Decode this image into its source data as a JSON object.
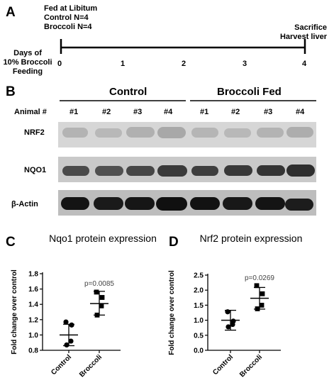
{
  "panel_a": {
    "letter": "A",
    "left_note": [
      "Fed at Libitum",
      "Control N=4",
      "Broccoli N=4"
    ],
    "right_note": [
      "Sacrifice",
      "Harvest liver"
    ],
    "axis_title": [
      "Days of",
      "10% Broccoli",
      "Feeding"
    ],
    "days": [
      "0",
      "1",
      "2",
      "3",
      "4"
    ]
  },
  "panel_b": {
    "letter": "B",
    "group_control": "Control",
    "group_broccoli": "Broccoli Fed",
    "animal_label": "Animal #",
    "animals": [
      "#1",
      "#2",
      "#3",
      "#4",
      "#1",
      "#2",
      "#3",
      "#4"
    ],
    "rows": [
      "NRF2",
      "NQO1",
      "β-Actin"
    ]
  },
  "chart_data": [
    {
      "panel": "C",
      "type": "scatter",
      "title": "Nqo1 protein expression",
      "ylabel": "Fold change over control",
      "categories": [
        "Control",
        "Broccoli"
      ],
      "ylim": [
        0.8,
        1.8
      ],
      "yticks": [
        "0.8",
        "1.0",
        "1.2",
        "1.4",
        "1.6",
        "1.8"
      ],
      "series": [
        {
          "marker": "circle",
          "values": [
            1.17,
            1.13,
            0.92,
            0.87
          ]
        },
        {
          "marker": "square",
          "values": [
            1.56,
            1.49,
            1.38,
            1.26
          ]
        }
      ],
      "mean": [
        1.0,
        1.41
      ],
      "sd_low": [
        0.86,
        1.26
      ],
      "sd_high": [
        1.14,
        1.57
      ],
      "annotation": "p=0.0085"
    },
    {
      "panel": "D",
      "type": "scatter",
      "title": "Nrf2 protein expression",
      "ylabel": "Fold change over control",
      "categories": [
        "Control",
        "Broccoli"
      ],
      "ylim": [
        0.0,
        2.5
      ],
      "yticks": [
        "0.0",
        "0.5",
        "1.0",
        "1.5",
        "2.0",
        "2.5"
      ],
      "series": [
        {
          "marker": "circle",
          "values": [
            1.28,
            0.97,
            0.86,
            0.78
          ]
        },
        {
          "marker": "square",
          "values": [
            2.15,
            1.88,
            1.5,
            1.38
          ]
        }
      ],
      "mean": [
        1.0,
        1.73
      ],
      "sd_low": [
        0.67,
        1.37
      ],
      "sd_high": [
        1.33,
        2.09
      ],
      "annotation": "p=0.0269"
    }
  ]
}
